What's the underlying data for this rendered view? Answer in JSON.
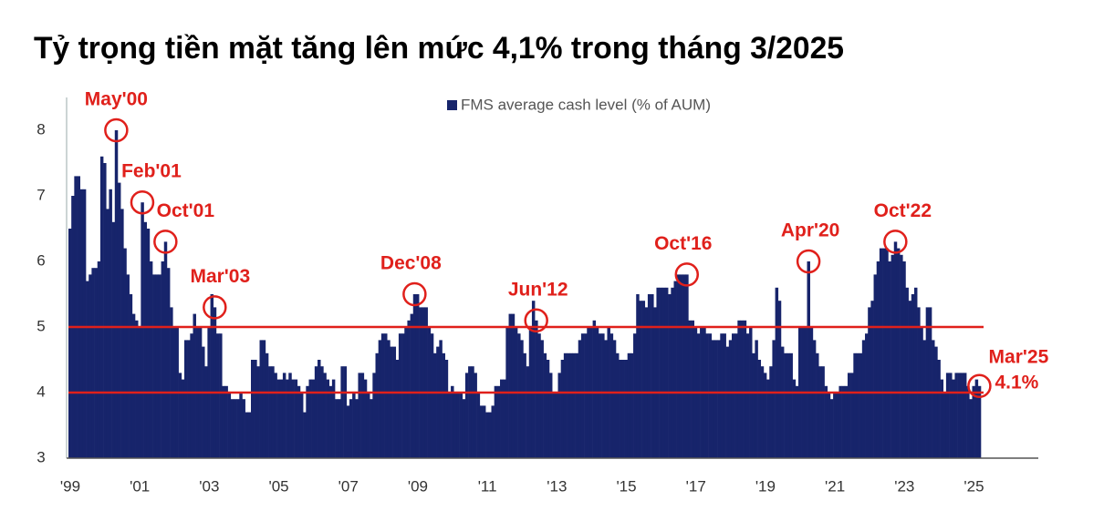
{
  "chart_data": {
    "type": "bar",
    "title": "Tỷ trọng tiền mặt tăng lên mức 4,1% trong tháng 3/2025",
    "legend": "FMS average cash level (% of AUM)",
    "color": "#17246b",
    "reference_lines": [
      5,
      4
    ],
    "reference_color": "#e0201b",
    "annotations": [
      "May'00",
      "Feb'01",
      "Oct'01",
      "Mar'03",
      "Dec'08",
      "Jun'12",
      "Oct'16",
      "Apr'20",
      "Oct'22",
      "Mar'25",
      "4.1%"
    ],
    "ylim": [
      3,
      8.5
    ],
    "yticks": [
      3,
      4,
      5,
      6,
      7,
      8
    ],
    "categories": [
      "'99",
      null,
      null,
      null,
      null,
      null,
      null,
      null,
      null,
      null,
      null,
      null,
      null,
      null,
      null,
      null,
      null,
      null,
      null,
      null,
      null,
      null,
      null,
      null,
      "'01",
      null,
      null,
      null,
      null,
      null,
      null,
      null,
      null,
      null,
      null,
      null,
      null,
      null,
      null,
      null,
      null,
      null,
      null,
      null,
      null,
      null,
      null,
      null,
      "'03",
      null,
      null,
      null,
      null,
      null,
      null,
      null,
      null,
      null,
      null,
      null,
      null,
      null,
      null,
      null,
      null,
      null,
      null,
      null,
      null,
      null,
      null,
      null,
      "'05",
      null,
      null,
      null,
      null,
      null,
      null,
      null,
      null,
      null,
      null,
      null,
      null,
      null,
      null,
      null,
      null,
      null,
      null,
      null,
      null,
      null,
      null,
      null,
      "'07",
      null,
      null,
      null,
      null,
      null,
      null,
      null,
      null,
      null,
      null,
      null,
      null,
      null,
      null,
      null,
      null,
      null,
      null,
      null,
      null,
      null,
      null,
      null,
      "'09",
      null,
      null,
      null,
      null,
      null,
      null,
      null,
      null,
      null,
      null,
      null,
      null,
      null,
      null,
      null,
      null,
      null,
      null,
      null,
      null,
      null,
      null,
      null,
      "'11",
      null,
      null,
      null,
      null,
      null,
      null,
      null,
      null,
      null,
      null,
      null,
      null,
      null,
      null,
      null,
      null,
      null,
      null,
      null,
      null,
      null,
      null,
      null,
      "'13",
      null,
      null,
      null,
      null,
      null,
      null,
      null,
      null,
      null,
      null,
      null,
      null,
      null,
      null,
      null,
      null,
      null,
      null,
      null,
      null,
      null,
      null,
      null,
      "'15",
      null,
      null,
      null,
      null,
      null,
      null,
      null,
      null,
      null,
      null,
      null,
      null,
      null,
      null,
      null,
      null,
      null,
      null,
      null,
      null,
      null,
      null,
      null,
      "'17",
      null,
      null,
      null,
      null,
      null,
      null,
      null,
      null,
      null,
      null,
      null,
      null,
      null,
      null,
      null,
      null,
      null,
      null,
      null,
      null,
      null,
      null,
      null,
      "'19",
      null,
      null,
      null,
      null,
      null,
      null,
      null,
      null,
      null,
      null,
      null,
      null,
      null,
      null,
      null,
      null,
      null,
      null,
      null,
      null,
      null,
      null,
      null,
      "'21",
      null,
      null,
      null,
      null,
      null,
      null,
      null,
      null,
      null,
      null,
      null,
      null,
      null,
      null,
      null,
      null,
      null,
      null,
      null,
      null,
      null,
      null,
      null,
      "'23",
      null,
      null,
      null,
      null,
      null,
      null,
      null,
      null,
      null,
      null,
      null,
      null,
      null,
      null,
      null,
      null,
      null,
      null,
      null,
      null,
      null,
      null,
      null,
      "'25",
      null,
      null
    ],
    "values": [
      6.5,
      7.0,
      7.3,
      7.3,
      7.1,
      7.1,
      5.7,
      5.8,
      5.9,
      5.9,
      6.0,
      7.6,
      7.5,
      6.8,
      7.1,
      6.6,
      8.0,
      7.2,
      6.8,
      6.2,
      5.8,
      5.5,
      5.2,
      5.1,
      5.0,
      6.9,
      6.6,
      6.5,
      6.0,
      5.8,
      5.8,
      5.8,
      6.0,
      6.3,
      5.9,
      5.3,
      5.0,
      5.0,
      4.3,
      4.2,
      4.8,
      4.8,
      4.9,
      5.2,
      5.0,
      5.0,
      4.7,
      4.4,
      5.0,
      5.5,
      5.3,
      4.9,
      4.9,
      4.1,
      4.1,
      4.0,
      3.9,
      3.9,
      3.9,
      4.0,
      3.9,
      3.7,
      3.7,
      4.5,
      4.5,
      4.4,
      4.8,
      4.8,
      4.6,
      4.4,
      4.4,
      4.3,
      4.2,
      4.2,
      4.3,
      4.2,
      4.3,
      4.2,
      4.2,
      4.1,
      4.0,
      3.7,
      4.1,
      4.2,
      4.2,
      4.4,
      4.5,
      4.4,
      4.3,
      4.2,
      4.1,
      4.2,
      3.9,
      3.9,
      4.4,
      4.4,
      3.8,
      3.9,
      4.0,
      3.9,
      4.3,
      4.3,
      4.2,
      4.0,
      3.9,
      4.3,
      4.6,
      4.8,
      4.9,
      4.9,
      4.8,
      4.7,
      4.7,
      4.5,
      4.9,
      4.9,
      5.0,
      5.1,
      5.2,
      5.5,
      5.5,
      5.3,
      5.3,
      5.3,
      5.0,
      4.9,
      4.6,
      4.7,
      4.8,
      4.6,
      4.5,
      4.0,
      4.1,
      4.0,
      4.0,
      4.0,
      3.9,
      4.3,
      4.4,
      4.4,
      4.3,
      4.0,
      3.8,
      3.8,
      3.7,
      3.7,
      3.8,
      4.1,
      4.1,
      4.2,
      4.2,
      5.0,
      5.2,
      5.2,
      5.0,
      4.9,
      4.8,
      4.6,
      4.4,
      5.0,
      5.4,
      5.1,
      4.9,
      4.8,
      4.6,
      4.5,
      4.3,
      4.0,
      4.0,
      4.3,
      4.5,
      4.6,
      4.6,
      4.6,
      4.6,
      4.6,
      4.8,
      4.9,
      4.9,
      5.0,
      5.0,
      5.1,
      5.0,
      4.9,
      4.9,
      4.8,
      5.0,
      4.9,
      4.8,
      4.6,
      4.5,
      4.5,
      4.5,
      4.6,
      4.6,
      4.9,
      5.5,
      5.4,
      5.4,
      5.3,
      5.5,
      5.5,
      5.3,
      5.6,
      5.6,
      5.6,
      5.6,
      5.5,
      5.6,
      5.7,
      5.8,
      5.8,
      5.8,
      5.8,
      5.1,
      5.1,
      5.0,
      4.9,
      5.0,
      5.0,
      4.9,
      4.9,
      4.8,
      4.8,
      4.8,
      4.9,
      4.9,
      4.7,
      4.8,
      4.9,
      4.9,
      5.1,
      5.1,
      5.1,
      4.9,
      5.0,
      4.6,
      4.8,
      4.5,
      4.4,
      4.3,
      4.2,
      4.4,
      4.8,
      5.6,
      5.4,
      4.7,
      4.6,
      4.6,
      4.6,
      4.2,
      4.1,
      5.0,
      5.0,
      5.0,
      6.0,
      5.0,
      4.8,
      4.6,
      4.4,
      4.4,
      4.1,
      4.0,
      3.9,
      4.0,
      4.0,
      4.1,
      4.1,
      4.1,
      4.3,
      4.3,
      4.6,
      4.6,
      4.6,
      4.8,
      4.9,
      5.3,
      5.4,
      5.8,
      6.0,
      6.2,
      6.2,
      6.2,
      6.0,
      6.1,
      6.3,
      6.2,
      6.1,
      6.0,
      5.6,
      5.4,
      5.5,
      5.6,
      5.3,
      5.0,
      4.8,
      5.3,
      5.3,
      4.8,
      4.7,
      4.5,
      4.2,
      4.0,
      4.3,
      4.3,
      4.2,
      4.3,
      4.3,
      4.3,
      4.3,
      4.1,
      3.9,
      4.1,
      4.2,
      4.1
    ]
  }
}
